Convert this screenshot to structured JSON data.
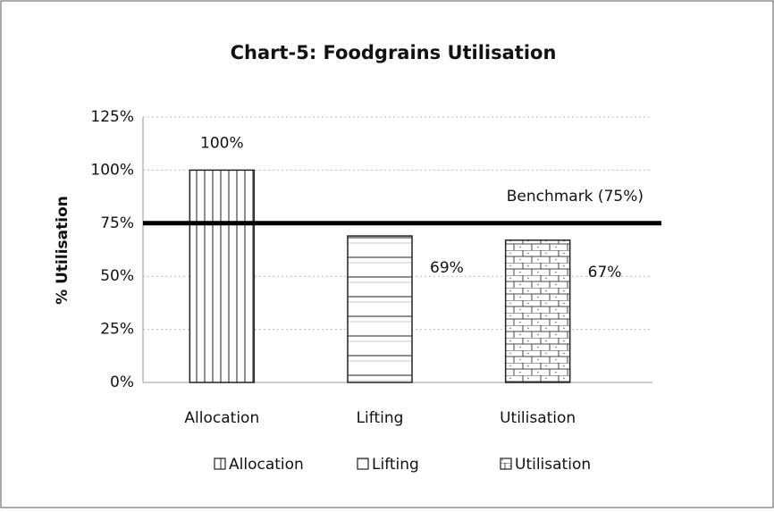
{
  "chart_data": {
    "type": "bar",
    "title": "Chart-5: Foodgrains Utilisation",
    "y_label": "% Utilisation",
    "categories": [
      "Allocation",
      "Lifting",
      "Utilisation"
    ],
    "values": [
      100,
      69,
      67
    ],
    "value_labels": [
      "100%",
      "69%",
      "67%"
    ],
    "color": "#ffffff",
    "ylim": [
      0,
      125
    ],
    "yticks": [
      {
        "value": 0,
        "label": "0%"
      },
      {
        "value": 25,
        "label": "25%"
      },
      {
        "value": 50,
        "label": "50%"
      },
      {
        "value": 75,
        "label": "75%"
      },
      {
        "value": 100,
        "label": "100%"
      },
      {
        "value": 125,
        "label": "125%"
      }
    ],
    "grid": true,
    "benchmark": {
      "value": 75,
      "label": "Benchmark (75%)"
    },
    "legend": "bottom"
  }
}
